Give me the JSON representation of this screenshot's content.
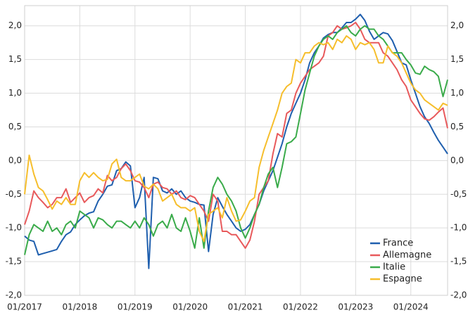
{
  "chart_data": {
    "type": "line",
    "categories": [
      "01/2017",
      null,
      null,
      null,
      null,
      null,
      null,
      null,
      null,
      null,
      null,
      null,
      "01/2018",
      null,
      null,
      null,
      null,
      null,
      null,
      null,
      null,
      null,
      null,
      null,
      "01/2019",
      null,
      null,
      null,
      null,
      null,
      null,
      null,
      null,
      null,
      null,
      null,
      "01/2020",
      null,
      null,
      null,
      null,
      null,
      null,
      null,
      null,
      null,
      null,
      null,
      "01/2021",
      null,
      null,
      null,
      null,
      null,
      null,
      null,
      null,
      null,
      null,
      null,
      "01/2022",
      null,
      null,
      null,
      null,
      null,
      null,
      null,
      null,
      null,
      null,
      null,
      "01/2023",
      null,
      null,
      null,
      null,
      null,
      null,
      null,
      null,
      null,
      null,
      null,
      "01/2024",
      null,
      null,
      null,
      null,
      null,
      null,
      null,
      null
    ],
    "series": [
      {
        "name": "France",
        "color": "#1f5fae",
        "values": [
          -1.12,
          -1.18,
          -1.2,
          -1.4,
          -1.38,
          -1.36,
          -1.34,
          -1.32,
          -1.2,
          -1.1,
          -1.06,
          -0.95,
          -0.88,
          -0.82,
          -0.78,
          -0.76,
          -0.6,
          -0.5,
          -0.38,
          -0.36,
          -0.15,
          -0.12,
          -0.02,
          -0.08,
          -0.7,
          -0.55,
          -0.25,
          -1.6,
          -0.25,
          -0.27,
          -0.45,
          -0.48,
          -0.42,
          -0.5,
          -0.45,
          -0.55,
          -0.6,
          -0.62,
          -0.65,
          -0.66,
          -1.35,
          -0.8,
          -0.55,
          -0.68,
          -0.8,
          -0.9,
          -1.0,
          -1.05,
          -1.02,
          -0.95,
          -0.8,
          -0.65,
          -0.45,
          -0.3,
          -0.15,
          0.05,
          0.25,
          0.5,
          0.7,
          0.85,
          1.0,
          1.2,
          1.45,
          1.6,
          1.7,
          1.82,
          1.87,
          1.9,
          1.9,
          1.97,
          2.05,
          2.05,
          2.1,
          2.17,
          2.08,
          1.92,
          1.8,
          1.85,
          1.9,
          1.88,
          1.78,
          1.62,
          1.45,
          1.42,
          1.2,
          1.0,
          0.8,
          0.65,
          0.55,
          0.42,
          0.3,
          0.2,
          0.1
        ]
      },
      {
        "name": "Allemagne",
        "color": "#e8595b",
        "values": [
          -0.95,
          -0.75,
          -0.45,
          -0.55,
          -0.62,
          -0.7,
          -0.65,
          -0.55,
          -0.55,
          -0.42,
          -0.62,
          -0.55,
          -0.48,
          -0.62,
          -0.55,
          -0.52,
          -0.42,
          -0.48,
          -0.22,
          -0.3,
          -0.25,
          -0.12,
          -0.05,
          -0.15,
          -0.3,
          -0.32,
          -0.4,
          -0.55,
          -0.35,
          -0.32,
          -0.4,
          -0.42,
          -0.5,
          -0.45,
          -0.55,
          -0.58,
          -0.52,
          -0.55,
          -0.65,
          -0.75,
          -0.9,
          -0.5,
          -0.6,
          -1.05,
          -1.05,
          -1.1,
          -1.1,
          -1.2,
          -1.3,
          -1.18,
          -0.9,
          -0.5,
          -0.4,
          -0.3,
          0.1,
          0.4,
          0.35,
          0.7,
          0.75,
          1.0,
          1.15,
          1.25,
          1.35,
          1.4,
          1.45,
          1.55,
          1.85,
          1.9,
          2.0,
          1.95,
          1.97,
          2.0,
          2.05,
          1.95,
          1.8,
          1.75,
          1.75,
          1.75,
          1.6,
          1.55,
          1.45,
          1.35,
          1.2,
          1.1,
          0.9,
          0.8,
          0.7,
          0.62,
          0.6,
          0.65,
          0.72,
          0.78,
          0.48
        ]
      },
      {
        "name": "Italie",
        "color": "#3aab4a",
        "values": [
          -1.4,
          -1.1,
          -0.95,
          -1.0,
          -1.05,
          -0.9,
          -1.05,
          -1.0,
          -1.1,
          -0.95,
          -0.9,
          -1.0,
          -0.75,
          -0.8,
          -0.85,
          -1.0,
          -0.85,
          -0.88,
          -0.95,
          -1.0,
          -0.9,
          -0.9,
          -0.95,
          -1.0,
          -0.9,
          -1.0,
          -0.85,
          -0.95,
          -1.12,
          -0.95,
          -0.9,
          -1.0,
          -0.8,
          -1.0,
          -1.05,
          -0.85,
          -1.05,
          -1.3,
          -0.85,
          -1.3,
          -0.75,
          -0.4,
          -0.25,
          -0.35,
          -0.5,
          -0.6,
          -0.75,
          -1.0,
          -1.15,
          -1.0,
          -0.8,
          -0.65,
          -0.4,
          -0.2,
          -0.1,
          -0.4,
          -0.1,
          0.25,
          0.28,
          0.35,
          0.7,
          1.05,
          1.3,
          1.55,
          1.7,
          1.8,
          1.85,
          1.8,
          1.9,
          1.95,
          2.0,
          1.9,
          1.85,
          1.95,
          2.0,
          1.95,
          1.95,
          1.85,
          1.8,
          1.7,
          1.6,
          1.6,
          1.6,
          1.5,
          1.42,
          1.3,
          1.28,
          1.4,
          1.35,
          1.32,
          1.25,
          0.95,
          1.2
        ]
      },
      {
        "name": "Espagne",
        "color": "#f6be2c",
        "values": [
          -0.5,
          0.08,
          -0.2,
          -0.4,
          -0.45,
          -0.58,
          -0.72,
          -0.6,
          -0.65,
          -0.55,
          -0.65,
          -0.65,
          -0.3,
          -0.18,
          -0.25,
          -0.18,
          -0.25,
          -0.3,
          -0.28,
          -0.05,
          0.02,
          -0.25,
          -0.3,
          -0.3,
          -0.25,
          -0.2,
          -0.38,
          -0.42,
          -0.35,
          -0.42,
          -0.6,
          -0.55,
          -0.5,
          -0.65,
          -0.7,
          -0.7,
          -0.75,
          -0.7,
          -1.05,
          -1.2,
          -0.8,
          -0.75,
          -0.7,
          -0.85,
          -0.55,
          -0.75,
          -0.9,
          -0.88,
          -0.75,
          -0.6,
          -0.55,
          -0.1,
          0.15,
          0.35,
          0.55,
          0.75,
          1.0,
          1.1,
          1.15,
          1.5,
          1.45,
          1.6,
          1.6,
          1.7,
          1.75,
          1.72,
          1.75,
          1.65,
          1.8,
          1.75,
          1.85,
          1.8,
          1.65,
          1.75,
          1.72,
          1.75,
          1.65,
          1.45,
          1.45,
          1.7,
          1.6,
          1.55,
          1.45,
          1.3,
          1.15,
          1.05,
          1.0,
          0.9,
          0.85,
          0.8,
          0.75,
          0.85,
          0.82
        ]
      }
    ],
    "ylim": [
      -2,
      2.3
    ],
    "yticks": [
      {
        "value": -2,
        "label": "-2,0"
      },
      {
        "value": -1.5,
        "label": "-1,5"
      },
      {
        "value": -1,
        "label": "-1,0"
      },
      {
        "value": -0.5,
        "label": "-0,5"
      },
      {
        "value": 0,
        "label": "0,0"
      },
      {
        "value": 0.5,
        "label": "0,5"
      },
      {
        "value": 1,
        "label": "1,0"
      },
      {
        "value": 1.5,
        "label": "1,5"
      },
      {
        "value": 2,
        "label": "2,0"
      }
    ],
    "grid": true,
    "legend": "lower right"
  }
}
